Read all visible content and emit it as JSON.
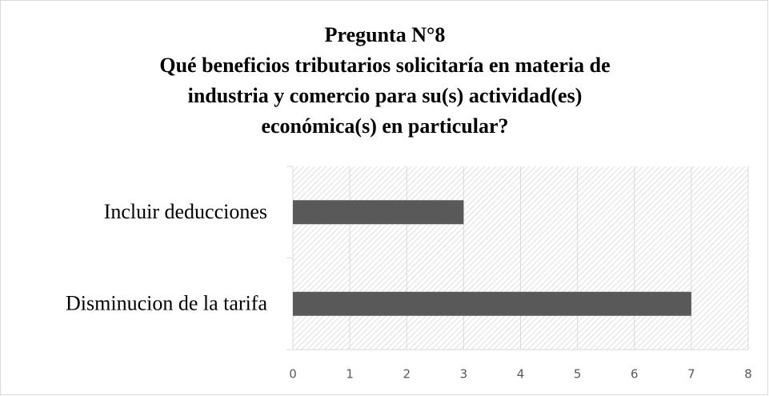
{
  "chart_data": {
    "type": "bar",
    "orientation": "horizontal",
    "title": "Pregunta N°8",
    "subtitle": [
      "Qué beneficios tributarios solicitaría en materia de",
      "industria y comercio para su(s) actividad(es)",
      "económica(s) en particular?"
    ],
    "categories": [
      "Incluir deducciones",
      "Disminucion de la tarifa"
    ],
    "values": [
      3,
      7
    ],
    "color": "#595959",
    "xlim": [
      0,
      8
    ],
    "xticks": [
      0,
      1,
      2,
      3,
      4,
      5,
      6,
      7,
      8
    ],
    "grid": true
  }
}
